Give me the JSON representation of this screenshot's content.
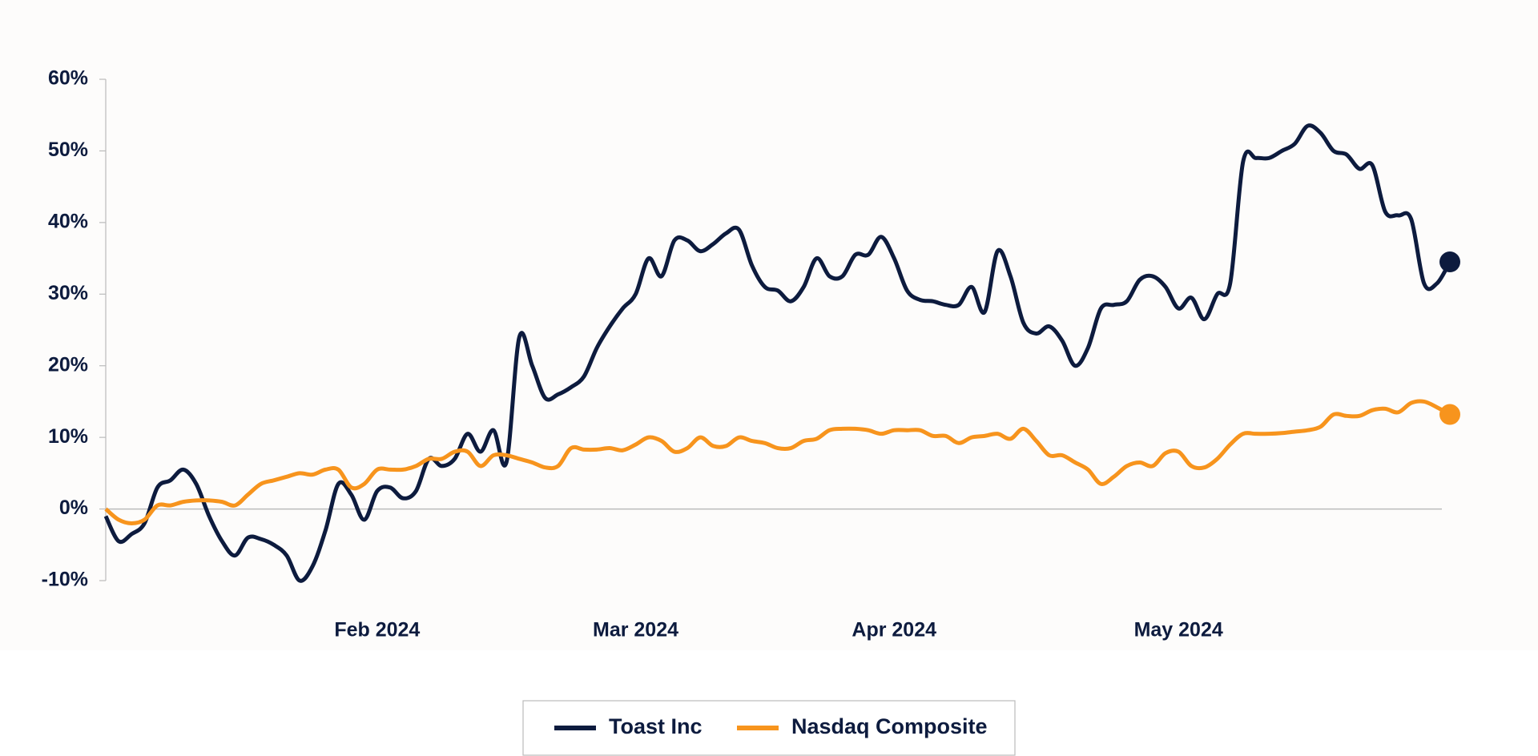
{
  "chart_data": {
    "type": "line",
    "categories": [
      null,
      null,
      null,
      null,
      null,
      null,
      null,
      null,
      null,
      null,
      null,
      null,
      null,
      null,
      null,
      null,
      null,
      null,
      null,
      null,
      null,
      "Feb 2024",
      null,
      null,
      null,
      null,
      null,
      null,
      null,
      null,
      null,
      null,
      null,
      null,
      null,
      null,
      null,
      null,
      null,
      null,
      null,
      "Mar 2024",
      null,
      null,
      null,
      null,
      null,
      null,
      null,
      null,
      null,
      null,
      null,
      null,
      null,
      null,
      null,
      null,
      null,
      null,
      null,
      "Apr 2024",
      null,
      null,
      null,
      null,
      null,
      null,
      null,
      null,
      null,
      null,
      null,
      null,
      null,
      null,
      null,
      null,
      null,
      null,
      null,
      null,
      null,
      "May 2024",
      null,
      null,
      null,
      null,
      null,
      null,
      null,
      null,
      null,
      null,
      null,
      null,
      null,
      null,
      null,
      null,
      null,
      null,
      null,
      null,
      null
    ],
    "series": [
      {
        "name": "Toast Inc",
        "color": "#0d1b3e",
        "values": [
          -1,
          -4.5,
          -3.5,
          -2,
          3,
          4,
          5.5,
          3.5,
          -1,
          -4.5,
          -6.5,
          -4,
          -4.2,
          -5,
          -6.5,
          -10,
          -8,
          -3,
          3.5,
          2,
          -1.5,
          2.5,
          3,
          1.5,
          2.5,
          7,
          6,
          7,
          10.5,
          8,
          11,
          6.5,
          24,
          20,
          15.5,
          16,
          17,
          18.5,
          22.5,
          25.5,
          28,
          30,
          35,
          32.5,
          37.5,
          37.5,
          36,
          37,
          38.5,
          39,
          34,
          31,
          30.5,
          29,
          31,
          35,
          32.5,
          32.5,
          35.5,
          35.5,
          38,
          35,
          30.5,
          29.2,
          29,
          28.5,
          28.5,
          31,
          27.5,
          36,
          32.5,
          26,
          24.5,
          25.5,
          23.5,
          20,
          22.5,
          28,
          28.5,
          29,
          32,
          32.5,
          31,
          28,
          29.5,
          26.5,
          30,
          31.5,
          48.5,
          49,
          49,
          50,
          51,
          53.5,
          52.5,
          50,
          49.5,
          47.5,
          48,
          41.5,
          41,
          40.5,
          31.5,
          31.5,
          34.5
        ]
      },
      {
        "name": "Nasdaq Composite",
        "color": "#f7941d",
        "values": [
          0,
          -1.5,
          -2,
          -1.5,
          0.5,
          0.5,
          1,
          1.2,
          1.2,
          1,
          0.5,
          2,
          3.5,
          4,
          4.5,
          5,
          4.8,
          5.5,
          5.5,
          3,
          3.5,
          5.5,
          5.5,
          5.5,
          6,
          7,
          7,
          8,
          8,
          6,
          7.5,
          7.5,
          7,
          6.5,
          5.8,
          6,
          8.5,
          8.3,
          8.3,
          8.5,
          8.2,
          9,
          10,
          9.5,
          8,
          8.5,
          10,
          8.8,
          8.8,
          10,
          9.5,
          9.2,
          8.5,
          8.5,
          9.5,
          9.8,
          11,
          11.2,
          11.2,
          11,
          10.5,
          11,
          11,
          11,
          10.2,
          10.2,
          9.2,
          10,
          10.2,
          10.5,
          9.8,
          11.2,
          9.5,
          7.5,
          7.5,
          6.5,
          5.5,
          3.5,
          4.5,
          6,
          6.5,
          6,
          7.8,
          8,
          6,
          5.8,
          7,
          9,
          10.5,
          10.5,
          10.5,
          10.6,
          10.8,
          11,
          11.5,
          13.2,
          13,
          13,
          13.8,
          14,
          13.5,
          14.8,
          15,
          14.2,
          13.2
        ]
      }
    ],
    "ylim": [
      -10,
      60
    ],
    "yticks": [
      {
        "value": -10,
        "label": "-10%"
      },
      {
        "value": 0,
        "label": "0%"
      },
      {
        "value": 10,
        "label": "10%"
      },
      {
        "value": 20,
        "label": "20%"
      },
      {
        "value": 30,
        "label": "30%"
      },
      {
        "value": 40,
        "label": "40%"
      },
      {
        "value": 50,
        "label": "50%"
      },
      {
        "value": 60,
        "label": "60%"
      }
    ],
    "legend": "bottom"
  }
}
